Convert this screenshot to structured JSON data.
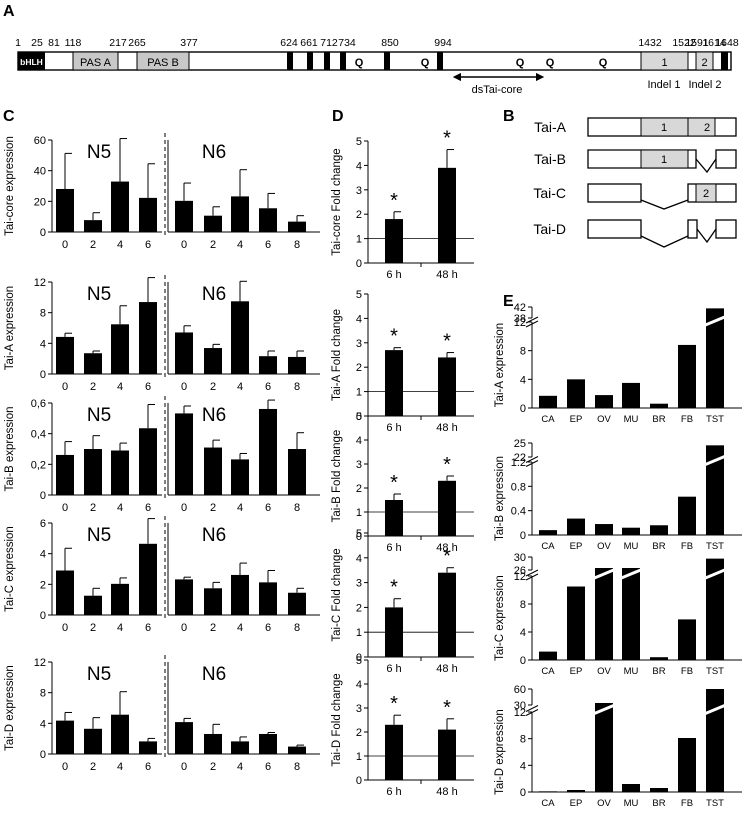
{
  "panels": {
    "a": {
      "label": "A",
      "positions": [
        "1",
        "25",
        "81",
        "118",
        "217",
        "265",
        "377",
        "624",
        "661",
        "712",
        "734",
        "850",
        "994",
        "1432",
        "1522",
        "1591",
        "1614",
        "1648"
      ],
      "domains": {
        "bhlh": "bHLH",
        "pas_a": "PAS A",
        "pas_b": "PAS B",
        "q": "Q",
        "indel1_box": "1",
        "indel2_box": "2"
      },
      "indel1": "Indel 1",
      "indel2": "Indel 2",
      "ds_label": "dsTai-core"
    },
    "b": {
      "label": "B",
      "isoforms": [
        "Tai-A",
        "Tai-B",
        "Tai-C",
        "Tai-D"
      ],
      "box1": "1",
      "box2": "2"
    },
    "c": {
      "label": "C"
    },
    "d": {
      "label": "D"
    },
    "e": {
      "label": "E"
    }
  },
  "chart_data": [
    {
      "id": "C-core",
      "type": "bar",
      "ylabel": "Tai-core expression",
      "ylim": [
        0,
        60
      ],
      "yticks": [
        "0",
        "20",
        "40",
        "60"
      ],
      "groups": [
        {
          "name": "N5",
          "categories": [
            "0",
            "2",
            "4",
            "6"
          ],
          "values": [
            29,
            8,
            34,
            23
          ],
          "errors": [
            24,
            5,
            29,
            23
          ]
        },
        {
          "name": "N6",
          "categories": [
            "0",
            "2",
            "4",
            "6",
            "8"
          ],
          "values": [
            21,
            11,
            24,
            16,
            7
          ],
          "errors": [
            12,
            6,
            18,
            10,
            4
          ]
        }
      ]
    },
    {
      "id": "C-A",
      "type": "bar",
      "ylabel": "Tai-A expression",
      "ylim": [
        0,
        12
      ],
      "yticks": [
        "0",
        "4",
        "8",
        "12"
      ],
      "groups": [
        {
          "name": "N5",
          "categories": [
            "0",
            "2",
            "4",
            "6"
          ],
          "values": [
            5.0,
            2.8,
            6.7,
            9.7
          ],
          "errors": [
            0.5,
            0.3,
            2.5,
            3.3
          ]
        },
        {
          "name": "N6",
          "categories": [
            "0",
            "2",
            "4",
            "6",
            "8"
          ],
          "values": [
            5.6,
            3.5,
            9.8,
            2.4,
            2.3
          ],
          "errors": [
            0.9,
            0.5,
            2.7,
            0.7,
            0.8
          ]
        }
      ]
    },
    {
      "id": "C-B",
      "type": "bar",
      "ylabel": "Tai-B expression",
      "ylim": [
        0,
        0.6
      ],
      "yticks": [
        "0",
        "0,2",
        "0,4",
        "0,6"
      ],
      "groups": [
        {
          "name": "N5",
          "categories": [
            "0",
            "2",
            "4",
            "6"
          ],
          "values": [
            0.27,
            0.31,
            0.3,
            0.45
          ],
          "errors": [
            0.09,
            0.09,
            0.05,
            0.16
          ]
        },
        {
          "name": "N6",
          "categories": [
            "0",
            "2",
            "4",
            "6",
            "8"
          ],
          "values": [
            0.55,
            0.32,
            0.24,
            0.58,
            0.31
          ],
          "errors": [
            0.05,
            0.05,
            0.04,
            0.06,
            0.11
          ]
        }
      ]
    },
    {
      "id": "C-C",
      "type": "bar",
      "ylabel": "Tai-C expression",
      "ylim": [
        0,
        6
      ],
      "yticks": [
        "0",
        "2",
        "4",
        "6"
      ],
      "groups": [
        {
          "name": "N5",
          "categories": [
            "0",
            "2",
            "4",
            "6"
          ],
          "values": [
            3.0,
            1.3,
            2.1,
            4.8
          ],
          "errors": [
            1.5,
            0.5,
            0.4,
            1.7
          ]
        },
        {
          "name": "N6",
          "categories": [
            "0",
            "2",
            "4",
            "6",
            "8"
          ],
          "values": [
            2.4,
            1.8,
            2.7,
            2.2,
            1.5
          ],
          "errors": [
            0.15,
            0.4,
            0.8,
            0.8,
            0.3
          ]
        }
      ]
    },
    {
      "id": "C-D",
      "type": "bar",
      "ylabel": "Tai-D expression",
      "ylim": [
        0,
        12
      ],
      "yticks": [
        "0",
        "4",
        "8",
        "12"
      ],
      "groups": [
        {
          "name": "N5",
          "categories": [
            "0",
            "2",
            "4",
            "6"
          ],
          "values": [
            4.5,
            3.4,
            5.3,
            1.7
          ],
          "errors": [
            1.1,
            1.5,
            3.1,
            0.4
          ]
        },
        {
          "name": "N6",
          "categories": [
            "0",
            "2",
            "4",
            "6",
            "8"
          ],
          "values": [
            4.3,
            2.7,
            1.7,
            2.7,
            1.0
          ],
          "errors": [
            0.5,
            1.3,
            0.6,
            0.2,
            0.2
          ]
        }
      ]
    },
    {
      "id": "D-core",
      "type": "bar",
      "ylabel": "Tai-core Fold change",
      "ylim": [
        0,
        5
      ],
      "yticks": [
        "0",
        "1",
        "2",
        "3",
        "4",
        "5"
      ],
      "categories": [
        "6 h",
        "48 h"
      ],
      "values": [
        1.8,
        3.9
      ],
      "errors": [
        0.3,
        0.75
      ],
      "significance": [
        "*",
        "*"
      ],
      "baseline": 1
    },
    {
      "id": "D-A",
      "type": "bar",
      "ylabel": "Tai-A Fold change",
      "ylim": [
        0,
        5
      ],
      "yticks": [
        "0",
        "1",
        "2",
        "3",
        "4",
        "5"
      ],
      "categories": [
        "6 h",
        "48 h"
      ],
      "values": [
        2.7,
        2.4
      ],
      "errors": [
        0.1,
        0.2
      ],
      "significance": [
        "*",
        "*"
      ],
      "baseline": 1
    },
    {
      "id": "D-B",
      "type": "bar",
      "ylabel": "Tai-B Fold change",
      "ylim": [
        0,
        5
      ],
      "yticks": [
        "0",
        "1",
        "2",
        "3",
        "4",
        "5"
      ],
      "categories": [
        "6 h",
        "48 h"
      ],
      "values": [
        1.5,
        2.3
      ],
      "errors": [
        0.25,
        0.2
      ],
      "significance": [
        "*",
        "*"
      ],
      "baseline": 1
    },
    {
      "id": "D-C",
      "type": "bar",
      "ylabel": "Tai-C Fold change",
      "ylim": [
        0,
        5
      ],
      "yticks": [
        "0",
        "1",
        "2",
        "3",
        "4",
        "5"
      ],
      "categories": [
        "6 h",
        "48 h"
      ],
      "values": [
        2.0,
        3.4
      ],
      "errors": [
        0.35,
        0.2
      ],
      "significance": [
        "*",
        "*"
      ],
      "baseline": 1
    },
    {
      "id": "D-D",
      "type": "bar",
      "ylabel": "Tai-D Fold change",
      "ylim": [
        0,
        5
      ],
      "yticks": [
        "0",
        "1",
        "2",
        "3",
        "4",
        "5"
      ],
      "categories": [
        "6 h",
        "48 h"
      ],
      "values": [
        2.3,
        2.1
      ],
      "errors": [
        0.4,
        0.45
      ],
      "significance": [
        "*",
        "*"
      ],
      "baseline": 1
    },
    {
      "id": "E-A",
      "type": "bar",
      "ylabel": "Tai-A expression",
      "broken_axis": true,
      "yticks_lower": [
        "0",
        "4",
        "8",
        "12"
      ],
      "lower_lim": [
        0,
        12
      ],
      "yticks_upper": [
        "38",
        "42"
      ],
      "upper_lim": [
        38,
        42
      ],
      "categories": [
        "CA",
        "EP",
        "OV",
        "MU",
        "BR",
        "FB",
        "TST"
      ],
      "values": [
        1.7,
        4.0,
        1.8,
        3.5,
        0.6,
        8.8,
        41.5
      ]
    },
    {
      "id": "E-B",
      "type": "bar",
      "ylabel": "Tai-B expression",
      "broken_axis": true,
      "yticks_lower": [
        "0",
        "0.4",
        "0.8",
        "1.2"
      ],
      "lower_lim": [
        0,
        1.2
      ],
      "yticks_upper": [
        "22",
        "25"
      ],
      "upper_lim": [
        22,
        25
      ],
      "categories": [
        "CA",
        "EP",
        "OV",
        "MU",
        "BR",
        "FB",
        "TST"
      ],
      "values": [
        0.08,
        0.27,
        0.18,
        0.12,
        0.16,
        0.63,
        24.5
      ]
    },
    {
      "id": "E-C",
      "type": "bar",
      "ylabel": "Tai-C expression",
      "broken_axis": true,
      "yticks_lower": [
        "0",
        "4",
        "8",
        "12"
      ],
      "lower_lim": [
        0,
        12
      ],
      "yticks_upper": [
        "26",
        "30"
      ],
      "upper_lim": [
        26,
        30
      ],
      "categories": [
        "CA",
        "EP",
        "OV",
        "MU",
        "BR",
        "FB",
        "TST"
      ],
      "values": [
        1.2,
        10.5,
        12.5,
        26.0,
        0.4,
        5.8,
        29.5
      ]
    },
    {
      "id": "E-D",
      "type": "bar",
      "ylabel": "Tai-D expression",
      "broken_axis": true,
      "yticks_lower": [
        "0",
        "4",
        "8",
        "12"
      ],
      "lower_lim": [
        0,
        12
      ],
      "yticks_upper": [
        "30",
        "60"
      ],
      "upper_lim": [
        30,
        60
      ],
      "categories": [
        "CA",
        "EP",
        "OV",
        "MU",
        "BR",
        "FB",
        "TST"
      ],
      "values": [
        0.1,
        0.3,
        31.0,
        1.2,
        0.6,
        8.1,
        60.0
      ]
    }
  ]
}
